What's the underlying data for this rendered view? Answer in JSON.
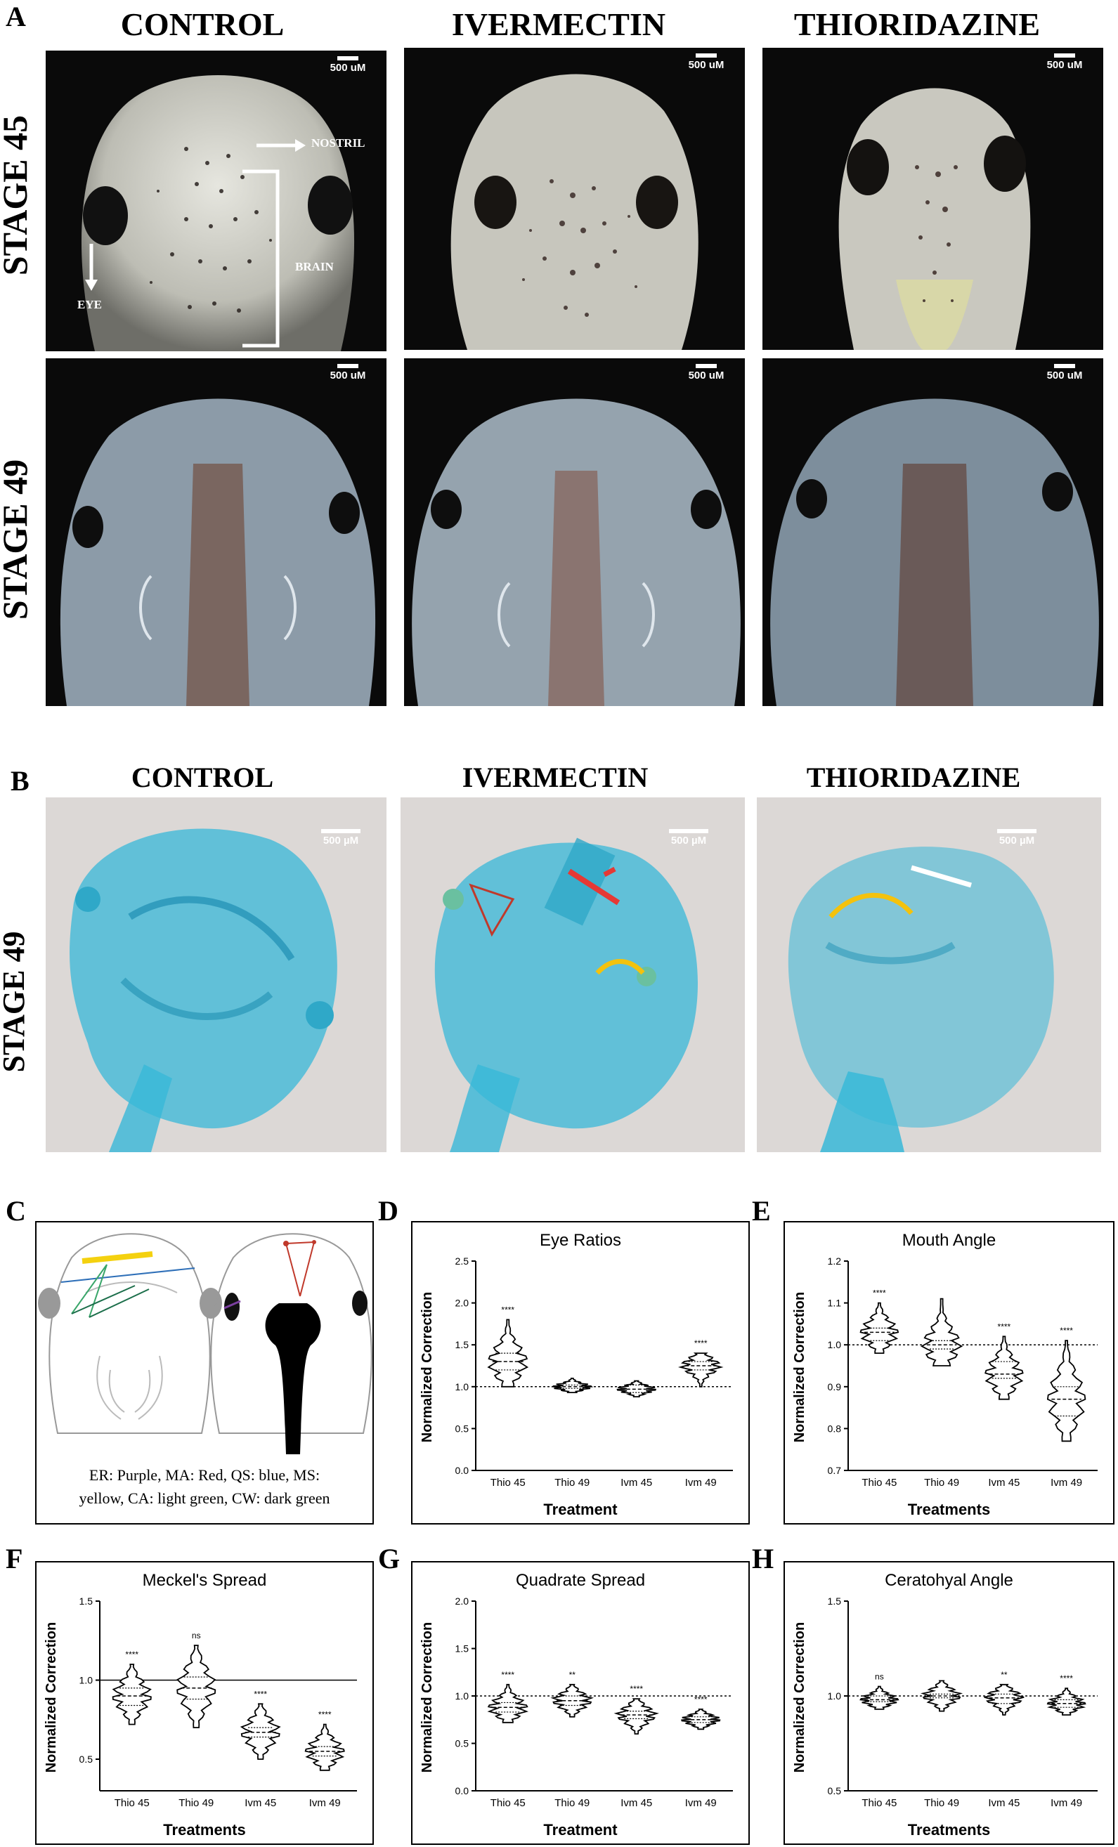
{
  "panelA": {
    "letter": "A",
    "columns": [
      "CONTROL",
      "IVERMECTIN",
      "THIORIDAZINE"
    ],
    "rows": [
      "STAGE 45",
      "STAGE 49"
    ],
    "scale_label": "500 uM",
    "annotations": {
      "nostril": "NOSTRIL",
      "brain": "BRAIN",
      "eye": "EYE"
    }
  },
  "panelB": {
    "letter": "B",
    "columns": [
      "CONTROL",
      "IVERMECTIN",
      "THIORIDAZINE"
    ],
    "row": "STAGE 49",
    "scale_label": "500 µM"
  },
  "panelC": {
    "letter": "C",
    "legend_line1": "ER: Purple, MA: Red, QS: blue, MS:",
    "legend_line2": "yellow, CA: light green, CW: dark green"
  },
  "colors": {
    "purple": "#7b3fa0",
    "red": "#c0392b",
    "blue": "#2e6fb8",
    "yellow": "#f4d10f",
    "light_green": "#3aa66a",
    "dark_green": "#1b6e4a",
    "stain_blue": "#38b8d8"
  },
  "chart_data": [
    {
      "id": "D",
      "letter": "D",
      "type": "violin",
      "title": "Eye Ratios",
      "ylabel": "Normalized Correction",
      "xlabel": "Treatment",
      "categories": [
        "Thio 45",
        "Thio 49",
        "Ivm 45",
        "Ivm 49"
      ],
      "ylim": [
        0,
        2.5
      ],
      "yticks": [
        "0.0",
        "0.5",
        "1.0",
        "1.5",
        "2.0",
        "2.5"
      ],
      "reference": 1.0,
      "medians": [
        1.3,
        1.0,
        0.97,
        1.25
      ],
      "q1": [
        1.2,
        0.98,
        0.93,
        1.2
      ],
      "q3": [
        1.4,
        1.02,
        1.02,
        1.3
      ],
      "min": [
        1.0,
        0.93,
        0.88,
        1.0
      ],
      "max": [
        1.8,
        1.1,
        1.07,
        1.4
      ],
      "significance": [
        "****",
        "",
        "",
        "****"
      ]
    },
    {
      "id": "E",
      "letter": "E",
      "type": "violin",
      "title": "Mouth Angle",
      "ylabel": "Normalized Correction",
      "xlabel": "Treatments",
      "categories": [
        "Thio 45",
        "Thio 49",
        "Ivm 45",
        "Ivm 49"
      ],
      "ylim": [
        0.7,
        1.2
      ],
      "yticks": [
        "0.7",
        "0.8",
        "0.9",
        "1.0",
        "1.1",
        "1.2"
      ],
      "reference": 1.0,
      "medians": [
        1.03,
        1.0,
        0.93,
        0.87
      ],
      "q1": [
        1.01,
        0.99,
        0.92,
        0.83
      ],
      "q3": [
        1.04,
        1.01,
        0.96,
        0.9
      ],
      "min": [
        0.98,
        0.95,
        0.87,
        0.77
      ],
      "max": [
        1.1,
        1.11,
        1.02,
        1.01
      ],
      "significance": [
        "****",
        "",
        "****",
        "****"
      ]
    },
    {
      "id": "F",
      "letter": "F",
      "type": "violin",
      "title": "Meckel's Spread",
      "ylabel": "Normalized Correction",
      "xlabel": "Treatments",
      "categories": [
        "Thio 45",
        "Thio 49",
        "Ivm 45",
        "Ivm 49"
      ],
      "ylim": [
        0.3,
        1.5
      ],
      "yticks": [
        "0.5",
        "1.0",
        "1.5"
      ],
      "reference": 1.0,
      "medians": [
        0.9,
        0.95,
        0.67,
        0.55
      ],
      "q1": [
        0.84,
        0.88,
        0.64,
        0.52
      ],
      "q3": [
        0.95,
        1.02,
        0.7,
        0.58
      ],
      "min": [
        0.72,
        0.7,
        0.5,
        0.43
      ],
      "max": [
        1.1,
        1.22,
        0.85,
        0.72
      ],
      "significance": [
        "****",
        "ns",
        "****",
        "****"
      ]
    },
    {
      "id": "G",
      "letter": "G",
      "type": "violin",
      "title": "Quadrate Spread",
      "ylabel": "Normalized Correction",
      "xlabel": "Treatment",
      "categories": [
        "Thio 45",
        "Thio 49",
        "Ivm 45",
        "Ivm 49"
      ],
      "ylim": [
        0,
        2.0
      ],
      "yticks": [
        "0.0",
        "0.5",
        "1.0",
        "1.5",
        "2.0"
      ],
      "reference": 1.0,
      "medians": [
        0.88,
        0.95,
        0.8,
        0.75
      ],
      "q1": [
        0.83,
        0.9,
        0.76,
        0.72
      ],
      "q3": [
        0.93,
        1.0,
        0.84,
        0.78
      ],
      "min": [
        0.72,
        0.78,
        0.6,
        0.65
      ],
      "max": [
        1.12,
        1.12,
        0.97,
        0.86
      ],
      "significance": [
        "****",
        "**",
        "****",
        "****"
      ]
    },
    {
      "id": "H",
      "letter": "H",
      "type": "violin",
      "title": "Ceratohyal Angle",
      "ylabel": "Normalized Correction",
      "xlabel": "Treatments",
      "categories": [
        "Thio 45",
        "Thio 49",
        "Ivm 45",
        "Ivm 49"
      ],
      "ylim": [
        0.5,
        1.5
      ],
      "yticks": [
        "0.5",
        "1.0",
        "1.5"
      ],
      "reference": 1.0,
      "medians": [
        0.98,
        1.0,
        0.99,
        0.96
      ],
      "q1": [
        0.97,
        0.99,
        0.96,
        0.94
      ],
      "q3": [
        1.0,
        1.01,
        1.01,
        0.98
      ],
      "min": [
        0.93,
        0.92,
        0.9,
        0.9
      ],
      "max": [
        1.05,
        1.08,
        1.06,
        1.04
      ],
      "significance": [
        "ns",
        "",
        "**",
        "****"
      ]
    }
  ]
}
